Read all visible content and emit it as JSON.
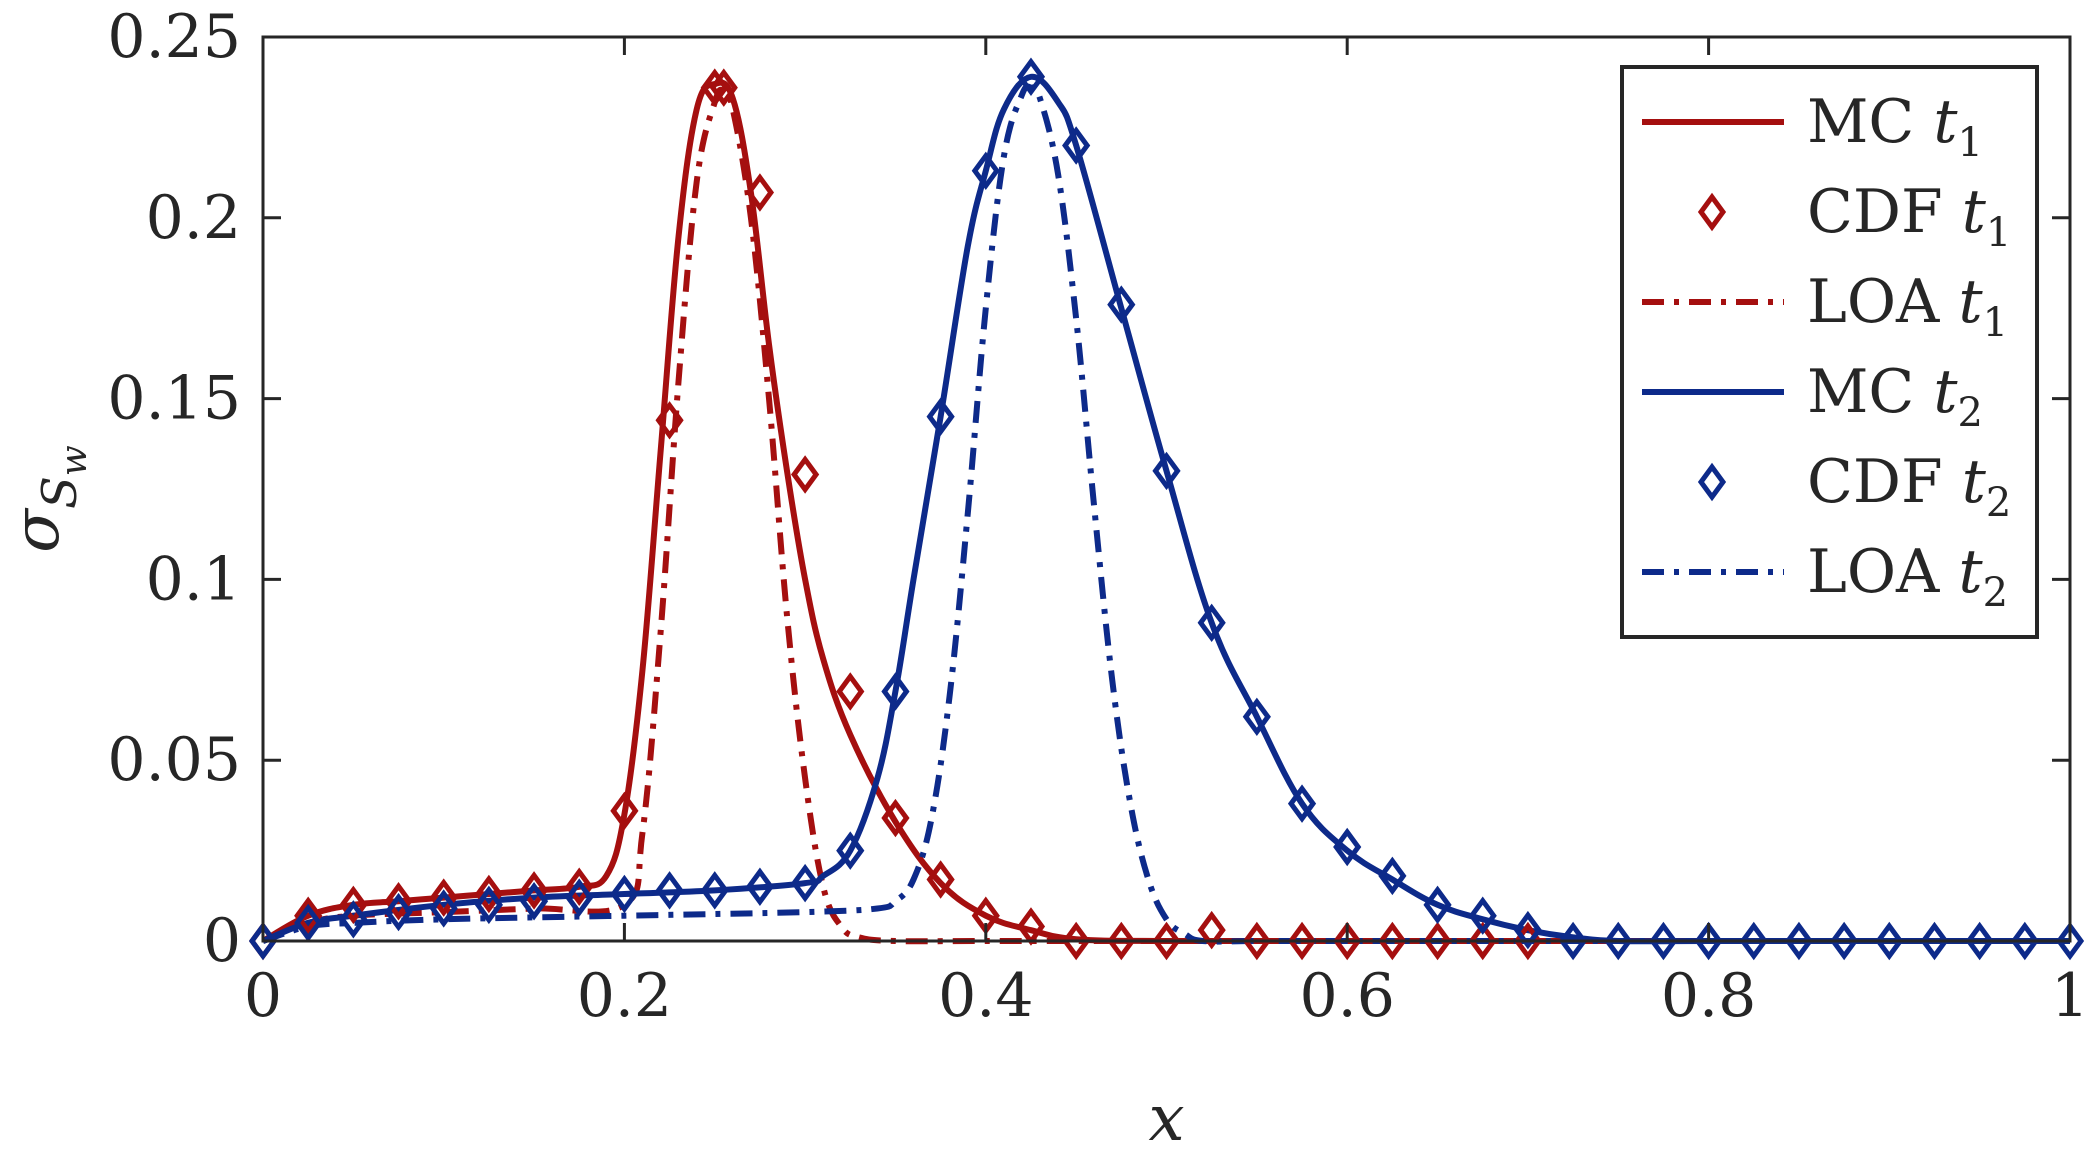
{
  "chart_data": {
    "type": "line",
    "xlabel": "x",
    "ylabel": "σ",
    "ylabel_sub": "S",
    "ylabel_subsub": "w",
    "xlim": [
      0,
      1
    ],
    "ylim": [
      0,
      0.25
    ],
    "xticks": [
      0,
      0.2,
      0.4,
      0.6,
      0.8,
      1
    ],
    "xtick_labels": [
      "0",
      "0.2",
      "0.4",
      "0.6",
      "0.8",
      "1"
    ],
    "yticks": [
      0,
      0.05,
      0.1,
      0.15,
      0.2,
      0.25
    ],
    "ytick_labels": [
      "0",
      "0.05",
      "0.1",
      "0.15",
      "0.2",
      "0.25"
    ],
    "grid": false,
    "legend_position": "top-right",
    "colors": {
      "red": "#a50f0f",
      "blue": "#0d2a8a",
      "axis": "#262626"
    },
    "series": [
      {
        "label": "MC t",
        "label_sub": "1",
        "style": "solid",
        "color": "#a50f0f",
        "x": [
          0,
          0.025,
          0.05,
          0.075,
          0.1,
          0.125,
          0.15,
          0.175,
          0.19,
          0.2,
          0.21,
          0.22,
          0.23,
          0.24,
          0.25,
          0.26,
          0.27,
          0.28,
          0.29,
          0.3,
          0.31,
          0.325,
          0.35,
          0.375,
          0.4,
          0.425,
          0.45,
          0.5,
          0.6,
          0.7,
          0.8,
          0.9,
          1.0
        ],
        "y": [
          0,
          0.007,
          0.01,
          0.011,
          0.012,
          0.013,
          0.014,
          0.015,
          0.018,
          0.035,
          0.075,
          0.135,
          0.195,
          0.23,
          0.237,
          0.233,
          0.207,
          0.165,
          0.13,
          0.1,
          0.078,
          0.057,
          0.033,
          0.016,
          0.007,
          0.003,
          0.0005,
          0,
          0,
          0,
          0,
          0,
          0
        ]
      },
      {
        "label": "CDF t",
        "label_sub": "1",
        "style": "markers",
        "marker": "diamond",
        "color": "#a50f0f",
        "x": [
          0,
          0.025,
          0.05,
          0.075,
          0.1,
          0.125,
          0.15,
          0.175,
          0.2,
          0.225,
          0.25,
          0.255,
          0.275,
          0.3,
          0.325,
          0.35,
          0.375,
          0.4,
          0.425,
          0.45,
          0.475,
          0.5,
          0.525,
          0.55,
          0.575,
          0.6,
          0.625,
          0.65,
          0.675,
          0.7
        ],
        "y": [
          0,
          0.007,
          0.01,
          0.011,
          0.012,
          0.013,
          0.014,
          0.015,
          0.036,
          0.144,
          0.236,
          0.236,
          0.207,
          0.129,
          0.069,
          0.034,
          0.017,
          0.007,
          0.004,
          0,
          0,
          0,
          0.003,
          0,
          0,
          0,
          0,
          0,
          0,
          0
        ]
      },
      {
        "label": "LOA t",
        "label_sub": "1",
        "style": "dashdot",
        "color": "#a50f0f",
        "x": [
          0,
          0.025,
          0.05,
          0.1,
          0.15,
          0.2,
          0.21,
          0.22,
          0.23,
          0.24,
          0.25,
          0.255,
          0.26,
          0.27,
          0.28,
          0.29,
          0.3,
          0.31,
          0.32,
          0.33,
          0.35,
          0.4,
          0.5,
          0.6,
          0.7,
          0.8,
          0.9,
          1.0
        ],
        "y": [
          0,
          0.005,
          0.007,
          0.008,
          0.009,
          0.01,
          0.03,
          0.085,
          0.155,
          0.21,
          0.232,
          0.235,
          0.23,
          0.2,
          0.15,
          0.09,
          0.045,
          0.015,
          0.004,
          0.001,
          0,
          0,
          0,
          0,
          0,
          0,
          0,
          0
        ]
      },
      {
        "label": "MC t",
        "label_sub": "2",
        "style": "solid",
        "color": "#0d2a8a",
        "x": [
          0,
          0.025,
          0.05,
          0.1,
          0.15,
          0.2,
          0.25,
          0.3,
          0.31,
          0.325,
          0.34,
          0.35,
          0.36,
          0.375,
          0.39,
          0.4,
          0.41,
          0.425,
          0.44,
          0.45,
          0.475,
          0.5,
          0.525,
          0.55,
          0.575,
          0.6,
          0.625,
          0.65,
          0.675,
          0.7,
          0.725,
          0.75,
          0.8,
          0.9,
          1.0
        ],
        "y": [
          0,
          0.005,
          0.007,
          0.01,
          0.012,
          0.013,
          0.014,
          0.016,
          0.018,
          0.025,
          0.045,
          0.069,
          0.1,
          0.145,
          0.192,
          0.213,
          0.23,
          0.239,
          0.232,
          0.22,
          0.175,
          0.13,
          0.088,
          0.062,
          0.038,
          0.025,
          0.017,
          0.01,
          0.006,
          0.003,
          0.001,
          0,
          0,
          0,
          0
        ]
      },
      {
        "label": "CDF t",
        "label_sub": "2",
        "style": "markers",
        "marker": "diamond",
        "color": "#0d2a8a",
        "x": [
          0,
          0.025,
          0.05,
          0.075,
          0.1,
          0.125,
          0.15,
          0.175,
          0.2,
          0.225,
          0.25,
          0.275,
          0.3,
          0.325,
          0.35,
          0.375,
          0.4,
          0.425,
          0.45,
          0.475,
          0.5,
          0.525,
          0.55,
          0.575,
          0.6,
          0.625,
          0.65,
          0.675,
          0.7,
          0.725,
          0.75,
          0.775,
          0.8,
          0.825,
          0.85,
          0.875,
          0.9,
          0.925,
          0.95,
          0.975,
          1.0
        ],
        "y": [
          0,
          0.005,
          0.006,
          0.008,
          0.009,
          0.01,
          0.011,
          0.012,
          0.013,
          0.014,
          0.014,
          0.015,
          0.016,
          0.025,
          0.069,
          0.145,
          0.213,
          0.239,
          0.22,
          0.176,
          0.13,
          0.088,
          0.062,
          0.038,
          0.026,
          0.018,
          0.01,
          0.007,
          0.003,
          0,
          0,
          0,
          0,
          0,
          0,
          0,
          0,
          0,
          0,
          0,
          0
        ]
      },
      {
        "label": "LOA t",
        "label_sub": "2",
        "style": "dashdot",
        "color": "#0d2a8a",
        "x": [
          0,
          0.025,
          0.05,
          0.1,
          0.2,
          0.3,
          0.34,
          0.35,
          0.36,
          0.37,
          0.38,
          0.39,
          0.4,
          0.41,
          0.42,
          0.425,
          0.43,
          0.44,
          0.45,
          0.46,
          0.47,
          0.48,
          0.49,
          0.5,
          0.51,
          0.52,
          0.55,
          0.6,
          0.7,
          0.8,
          0.9,
          1.0
        ],
        "y": [
          0,
          0.004,
          0.005,
          0.006,
          0.007,
          0.008,
          0.009,
          0.011,
          0.017,
          0.034,
          0.068,
          0.118,
          0.175,
          0.217,
          0.234,
          0.236,
          0.233,
          0.212,
          0.172,
          0.12,
          0.072,
          0.038,
          0.017,
          0.006,
          0.002,
          0,
          0,
          0,
          0,
          0,
          0,
          0
        ]
      }
    ]
  }
}
